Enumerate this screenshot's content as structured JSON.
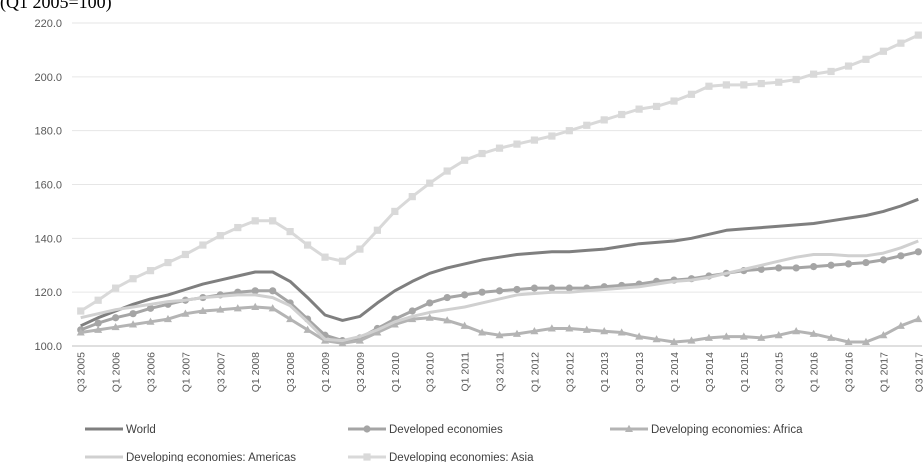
{
  "chart_data": {
    "type": "line",
    "title": "(Q1 2005=100)",
    "xlabel": "",
    "ylabel": "",
    "ylim": [
      100,
      220
    ],
    "yticks": [
      "100.0",
      "120.0",
      "140.0",
      "160.0",
      "180.0",
      "200.0",
      "220.0"
    ],
    "grid": true,
    "legend_position": "bottom",
    "x_tick_labels": [
      "Q3 2005",
      "Q1 2006",
      "Q3 2006",
      "Q1 2007",
      "Q3 2007",
      "Q1 2008",
      "Q3 2008",
      "Q1 2009",
      "Q3 2009",
      "Q1 2010",
      "Q3 2010",
      "Q1 2011",
      "Q3 2011",
      "Q1 2012",
      "Q3 2012",
      "Q1 2013",
      "Q3 2013",
      "Q1 2014",
      "Q3 2014",
      "Q1 2015",
      "Q3 2015",
      "Q1 2016",
      "Q3 2016",
      "Q1 2017",
      "Q3 2017"
    ],
    "categories": [
      "Q3 2005",
      "Q4 2005",
      "Q1 2006",
      "Q2 2006",
      "Q3 2006",
      "Q4 2006",
      "Q1 2007",
      "Q2 2007",
      "Q3 2007",
      "Q4 2007",
      "Q1 2008",
      "Q2 2008",
      "Q3 2008",
      "Q4 2008",
      "Q1 2009",
      "Q2 2009",
      "Q3 2009",
      "Q4 2009",
      "Q1 2010",
      "Q2 2010",
      "Q3 2010",
      "Q4 2010",
      "Q1 2011",
      "Q2 2011",
      "Q3 2011",
      "Q4 2011",
      "Q1 2012",
      "Q2 2012",
      "Q3 2012",
      "Q4 2012",
      "Q1 2013",
      "Q2 2013",
      "Q3 2013",
      "Q4 2013",
      "Q1 2014",
      "Q2 2014",
      "Q3 2014",
      "Q4 2014",
      "Q1 2015",
      "Q2 2015",
      "Q3 2015",
      "Q4 2015",
      "Q1 2016",
      "Q2 2016",
      "Q3 2016",
      "Q4 2016",
      "Q1 2017",
      "Q2 2017",
      "Q3 2017"
    ],
    "series": [
      {
        "name": "World",
        "color": "#7f7f7f",
        "marker": "none",
        "values": [
          107.5,
          110.5,
          113,
          115.5,
          117.5,
          119,
          121,
          123,
          124.5,
          126,
          127.5,
          127.5,
          124,
          118,
          111.5,
          109.5,
          111,
          116,
          120.5,
          124,
          127,
          129,
          130.5,
          132,
          133,
          134,
          134.5,
          135,
          135,
          135.5,
          136,
          137,
          138,
          138.5,
          139,
          140,
          141.5,
          143,
          143.5,
          144,
          144.5,
          145,
          145.5,
          146.5,
          147.5,
          148.5,
          150,
          152,
          154.5
        ]
      },
      {
        "name": "Developed economies",
        "color": "#a5a5a5",
        "marker": "circle",
        "values": [
          106,
          108.5,
          110.5,
          112,
          114,
          115.5,
          117,
          118,
          119,
          120,
          120.5,
          120.5,
          116,
          110,
          104,
          102,
          103,
          106.5,
          110,
          113,
          116,
          118,
          119,
          120,
          120.5,
          121,
          121.5,
          121.5,
          121.5,
          121.5,
          122,
          122.5,
          123,
          124,
          124.5,
          125,
          126,
          127,
          128,
          128.5,
          129,
          129,
          129.5,
          130,
          130.5,
          131,
          132,
          133.5,
          135
        ]
      },
      {
        "name": "Developing economies: Africa",
        "color": "#b4b4b4",
        "marker": "triangle",
        "values": [
          105,
          106,
          107,
          108,
          109,
          110,
          112,
          113,
          113.5,
          114,
          114.5,
          114,
          110,
          106,
          102,
          101,
          102,
          105,
          108,
          110,
          110.5,
          109.5,
          107.5,
          105,
          104,
          104.5,
          105.5,
          106.5,
          106.5,
          106,
          105.5,
          105,
          103.5,
          102.5,
          101.5,
          102,
          103,
          103.5,
          103.5,
          103,
          104,
          105.5,
          104.5,
          103,
          101.5,
          101.5,
          104,
          107.5,
          110
        ]
      },
      {
        "name": "Developing economies: Americas",
        "color": "#d0d0d0",
        "marker": "none",
        "values": [
          110.5,
          112,
          113.5,
          114.5,
          115.5,
          116.5,
          117,
          118,
          118.5,
          119,
          119,
          118,
          115,
          109,
          102.5,
          102,
          103.5,
          106,
          109,
          111,
          112.5,
          113.5,
          114.5,
          116,
          117.5,
          119,
          119.5,
          120,
          120,
          120.5,
          121,
          121.5,
          122,
          123,
          124,
          124.5,
          125.5,
          127,
          128.5,
          130,
          131.5,
          133,
          134,
          134,
          133.5,
          133.5,
          134.5,
          136.5,
          139
        ]
      },
      {
        "name": "Developing economies: Asia",
        "color": "#d9d9d9",
        "marker": "square",
        "values": [
          113,
          117,
          121.5,
          125,
          128,
          131,
          134,
          137.5,
          141,
          144,
          146.5,
          146.5,
          142.5,
          137.5,
          133,
          131.5,
          136,
          143,
          150,
          155.5,
          160.5,
          165,
          169,
          171.5,
          173.5,
          175,
          176.5,
          178,
          180,
          182,
          184,
          186,
          188,
          189,
          191,
          193.5,
          196.5,
          197,
          197,
          197.5,
          198,
          199,
          201,
          202,
          204,
          206.5,
          209.5,
          212.5,
          215.5
        ]
      }
    ]
  }
}
